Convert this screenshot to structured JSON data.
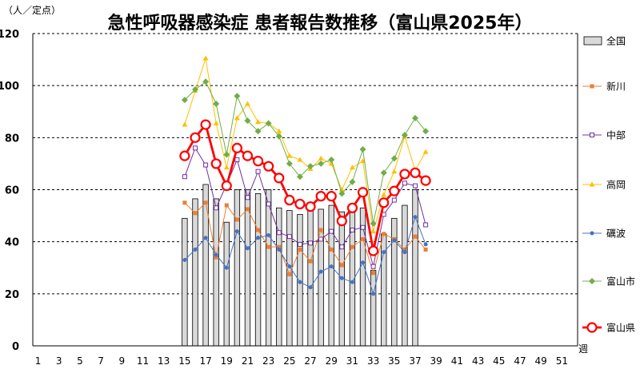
{
  "chart_data": {
    "type": "bar+line",
    "title": "急性呼吸器感染症 患者報告数推移（富山県2025年）",
    "ylabel": "（人／定点）",
    "xlabel": "週",
    "ylim": [
      0,
      120
    ],
    "yticks": [
      0,
      20,
      40,
      60,
      80,
      100,
      120
    ],
    "xlim": [
      1,
      52
    ],
    "xtick_labels": [
      1,
      3,
      5,
      7,
      9,
      11,
      13,
      15,
      17,
      19,
      21,
      23,
      25,
      27,
      29,
      31,
      33,
      35,
      37,
      39,
      41,
      43,
      45,
      47,
      49,
      51
    ],
    "x": [
      15,
      16,
      17,
      18,
      19,
      20,
      21,
      22,
      23,
      24,
      25,
      26,
      27,
      28,
      29,
      30,
      31,
      32,
      33,
      34,
      35,
      36,
      37,
      38
    ],
    "grid": "horizontal dashed",
    "legend_position": "right",
    "series": [
      {
        "name": "全国",
        "kind": "bar",
        "color": "#d9d9d9",
        "values": [
          49,
          56.5,
          62,
          56.5,
          47.5,
          60,
          60,
          58.5,
          60,
          53,
          52,
          50.5,
          54,
          52.5,
          54,
          51.5,
          51.5,
          53,
          29,
          43,
          49,
          54,
          60,
          null
        ]
      },
      {
        "name": "新川",
        "kind": "line",
        "color": "#ed7d31",
        "marker": "square",
        "values": [
          55,
          51,
          55,
          34,
          54,
          48.5,
          52.5,
          44.5,
          38,
          38,
          27.5,
          37,
          32.5,
          44.5,
          37,
          31,
          38,
          41,
          28,
          43,
          41,
          37,
          42,
          37
        ]
      },
      {
        "name": "中部",
        "kind": "line",
        "color": "#7030a0",
        "marker": "square-open",
        "values": [
          65,
          76,
          69.5,
          53,
          62,
          71.5,
          57,
          67,
          54.5,
          43.5,
          42,
          39,
          39.5,
          41,
          44,
          38,
          44.5,
          45.5,
          30.5,
          50.5,
          56,
          62.5,
          61.5,
          46.5
        ]
      },
      {
        "name": "高岡",
        "kind": "line",
        "color": "#ffc000",
        "marker": "triangle",
        "values": [
          85,
          98,
          110.5,
          85.5,
          68.5,
          87.5,
          93,
          86,
          85.5,
          82.5,
          73,
          71.5,
          68,
          72,
          70,
          60,
          68.5,
          71,
          44,
          58,
          67,
          80.5,
          67.5,
          74.5
        ]
      },
      {
        "name": "礪波",
        "kind": "line",
        "color": "#4472c4",
        "marker": "dot",
        "values": [
          33,
          37,
          41.5,
          35,
          30,
          44,
          37.5,
          41.5,
          42.5,
          37,
          30.5,
          24.5,
          22.5,
          28.5,
          30.5,
          26,
          24.5,
          32,
          20,
          36,
          40.5,
          36,
          49.5,
          39
        ]
      },
      {
        "name": "富山市",
        "kind": "line",
        "color": "#70ad47",
        "marker": "diamond",
        "values": [
          94.5,
          98.5,
          101.5,
          93,
          73.5,
          96,
          86.5,
          82.5,
          85.5,
          80.5,
          70,
          65,
          69,
          70,
          71.5,
          58.5,
          63,
          75.5,
          47,
          66.5,
          72,
          81,
          87.5,
          82.5
        ]
      },
      {
        "name": "富山県",
        "kind": "line",
        "color": "#ff0000",
        "marker": "circle-open",
        "emphasis": true,
        "values": [
          73,
          80,
          85,
          70,
          61.5,
          76,
          73,
          71,
          69,
          64.5,
          56,
          54.5,
          53.5,
          57.5,
          57.5,
          48,
          53,
          59,
          36.5,
          55,
          59.5,
          66,
          66.5,
          63.5
        ]
      }
    ]
  }
}
